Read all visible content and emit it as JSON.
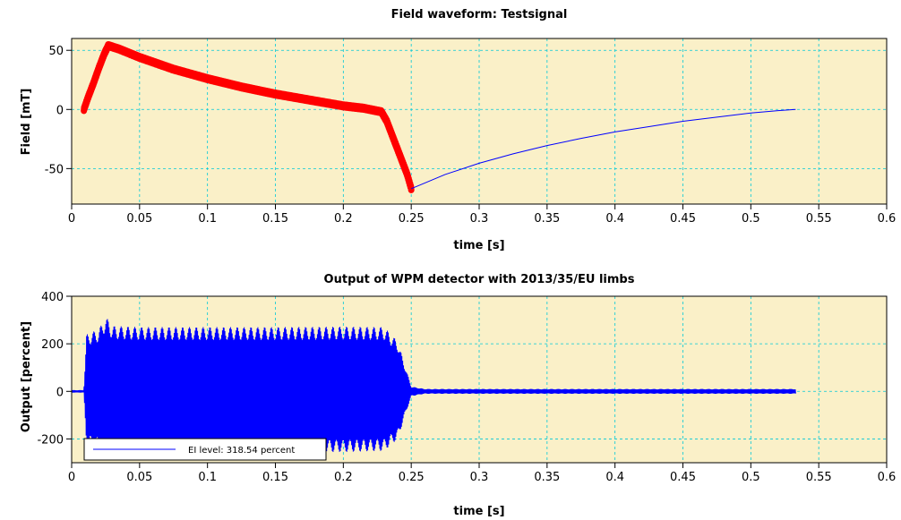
{
  "chart_data": [
    {
      "type": "line",
      "title": "Field waveform: Testsignal",
      "xlabel": "time [s]",
      "ylabel": "Field [mT]",
      "xlim": [
        0,
        0.6
      ],
      "ylim": [
        -80,
        60
      ],
      "xticks": [
        0,
        0.05,
        0.1,
        0.15,
        0.2,
        0.25,
        0.3,
        0.35,
        0.4,
        0.45,
        0.5,
        0.55,
        0.6
      ],
      "xtick_labels": [
        "0",
        "0.05",
        "0.1",
        "0.15",
        "0.2",
        "0.25",
        "0.3",
        "0.35",
        "0.4",
        "0.45",
        "0.5",
        "0.55",
        "0.6"
      ],
      "yticks": [
        -50,
        0,
        50
      ],
      "ytick_labels": [
        "-50",
        "0",
        "50"
      ],
      "grid": true,
      "background": "#faf0c8",
      "series": [
        {
          "color": "#ff0000",
          "style": "thick-oscillating",
          "x": [
            0.009,
            0.012,
            0.016,
            0.02,
            0.024,
            0.027,
            0.035,
            0.05,
            0.075,
            0.1,
            0.125,
            0.15,
            0.175,
            0.2,
            0.215,
            0.228,
            0.232,
            0.237,
            0.242,
            0.247,
            0.25
          ],
          "y": [
            0,
            10,
            22,
            35,
            47,
            54,
            51,
            44,
            34,
            26,
            19,
            13,
            8,
            3,
            1,
            -2,
            -10,
            -25,
            -40,
            -55,
            -67
          ]
        },
        {
          "color": "#0000ff",
          "style": "thin",
          "x": [
            0.25,
            0.275,
            0.3,
            0.325,
            0.35,
            0.375,
            0.4,
            0.425,
            0.45,
            0.475,
            0.5,
            0.52,
            0.533
          ],
          "y": [
            -67,
            -55,
            -45.5,
            -37.5,
            -30.5,
            -24.5,
            -19,
            -14.5,
            -10,
            -6.5,
            -3,
            -1,
            0
          ]
        }
      ]
    },
    {
      "type": "line",
      "title": "Output of WPM detector with 2013/35/EU limbs",
      "xlabel": "time [s]",
      "ylabel": "Output [percent]",
      "xlim": [
        0,
        0.6
      ],
      "ylim": [
        -300,
        400
      ],
      "xticks": [
        0,
        0.05,
        0.1,
        0.15,
        0.2,
        0.25,
        0.3,
        0.35,
        0.4,
        0.45,
        0.5,
        0.55,
        0.6
      ],
      "xtick_labels": [
        "0",
        "0.05",
        "0.1",
        "0.15",
        "0.2",
        "0.25",
        "0.3",
        "0.35",
        "0.4",
        "0.45",
        "0.5",
        "0.55",
        "0.6"
      ],
      "yticks": [
        -200,
        0,
        200,
        400
      ],
      "ytick_labels": [
        "-200",
        "0",
        "200",
        "400"
      ],
      "grid": true,
      "background": "#faf0c8",
      "legend": {
        "placement": "bottom-left",
        "label": "EI level: 318.54 percent"
      },
      "series": [
        {
          "name": "EI level: 318.54 percent",
          "color": "#0000ff",
          "style": "dense-oscillation",
          "envelope_x": [
            0,
            0.009,
            0.011,
            0.02,
            0.025,
            0.03,
            0.05,
            0.1,
            0.15,
            0.2,
            0.23,
            0.24,
            0.25,
            0.26,
            0.3,
            0.4,
            0.5,
            0.533
          ],
          "envelope_upper": [
            5,
            5,
            240,
            260,
            315,
            275,
            270,
            270,
            270,
            272,
            270,
            210,
            20,
            10,
            10,
            10,
            10,
            10
          ],
          "envelope_lower": [
            -5,
            -5,
            -230,
            -240,
            -250,
            -255,
            -255,
            -255,
            -255,
            -255,
            -250,
            -200,
            -20,
            -10,
            -10,
            -10,
            -10,
            -10
          ]
        }
      ]
    }
  ]
}
